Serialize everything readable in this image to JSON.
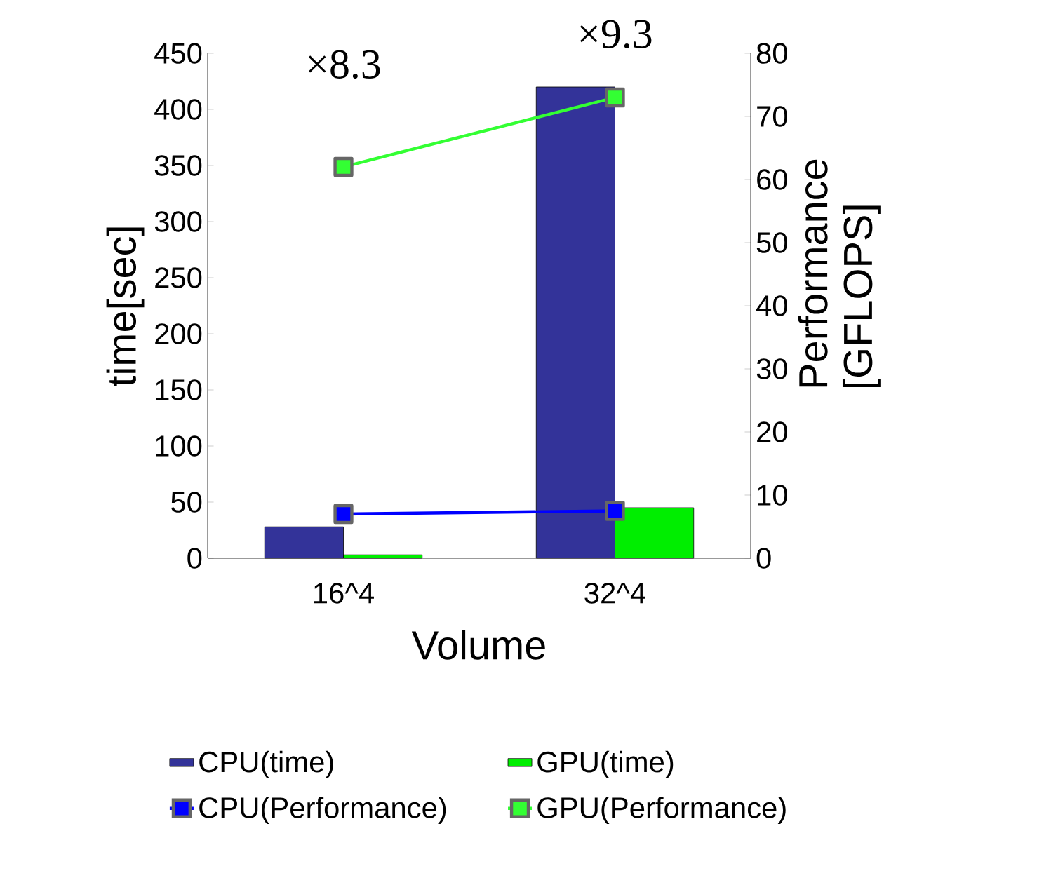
{
  "chart_data": {
    "type": "bar",
    "xlabel": "Volume",
    "ylabel": "time[sec]",
    "y2label": "Performance [GFLOPS]",
    "categories": [
      "16^4",
      "32^4"
    ],
    "series": [
      {
        "name": "CPU(time)",
        "color": "#333399",
        "values": [
          28,
          420
        ]
      },
      {
        "name": "GPU(time)",
        "color": "#00ee00",
        "values": [
          3,
          45
        ]
      },
      {
        "name": "CPU(Performance)",
        "type": "line",
        "axis": "y2",
        "color": "#0000ff",
        "marker": "square",
        "values": [
          7,
          7.5
        ]
      },
      {
        "name": "GPU(Performance)",
        "type": "line",
        "axis": "y2",
        "color": "#33ff33",
        "marker": "square",
        "values": [
          62,
          73
        ]
      }
    ],
    "ylim": [
      0,
      450
    ],
    "yticks": [
      0,
      50,
      100,
      150,
      200,
      250,
      300,
      350,
      400,
      450
    ],
    "y2lim": [
      0,
      80
    ],
    "y2ticks": [
      0,
      10,
      20,
      30,
      40,
      50,
      60,
      70,
      80
    ],
    "annotations": [
      "×8.3",
      "×9.3"
    ],
    "legend": "bottom"
  }
}
